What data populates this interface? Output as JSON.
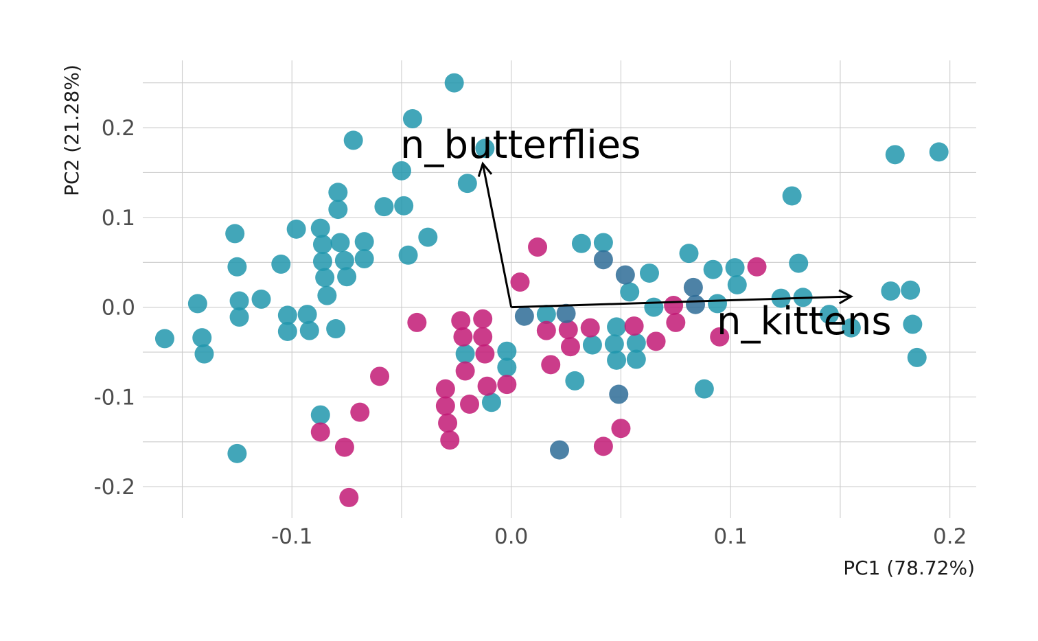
{
  "chart_data": {
    "type": "scatter",
    "title": "",
    "xlabel": "PC1 (78.72%)",
    "ylabel": "PC2 (21.28%)",
    "xlim": [
      -0.168,
      0.212
    ],
    "ylim": [
      -0.235,
      0.275
    ],
    "x_ticks": [
      -0.1,
      0.0,
      0.1,
      0.2
    ],
    "x_tick_labels": [
      "-0.1",
      "0.0",
      "0.1",
      "0.2"
    ],
    "y_ticks": [
      -0.2,
      -0.1,
      0.0,
      0.1,
      0.2
    ],
    "y_tick_labels": [
      "-0.2",
      "-0.1",
      "0.0",
      "0.1",
      "0.2"
    ],
    "grid": true,
    "legend": "none",
    "colors": {
      "teal": "#2196ad",
      "magenta": "#c21a75",
      "steel": "#2e6c96",
      "grid": "#cccccc",
      "arrow": "#000000"
    },
    "point_opacity": 0.85,
    "loadings": [
      {
        "label": "n_butterflies",
        "x": -0.013,
        "y": 0.16
      },
      {
        "label": "n_kittens",
        "x": 0.155,
        "y": 0.012
      }
    ],
    "series": [
      {
        "color_key": "teal",
        "points": [
          [
            -0.026,
            0.25
          ],
          [
            -0.045,
            0.21
          ],
          [
            -0.072,
            0.186
          ],
          [
            -0.012,
            0.177
          ],
          [
            -0.05,
            0.152
          ],
          [
            -0.02,
            0.138
          ],
          [
            -0.079,
            0.128
          ],
          [
            -0.058,
            0.112
          ],
          [
            -0.049,
            0.113
          ],
          [
            -0.079,
            0.109
          ],
          [
            -0.098,
            0.087
          ],
          [
            -0.087,
            0.088
          ],
          [
            -0.126,
            0.082
          ],
          [
            -0.038,
            0.078
          ],
          [
            -0.067,
            0.073
          ],
          [
            -0.078,
            0.072
          ],
          [
            -0.086,
            0.07
          ],
          [
            -0.047,
            0.058
          ],
          [
            -0.105,
            0.048
          ],
          [
            -0.125,
            0.045
          ],
          [
            -0.086,
            0.051
          ],
          [
            -0.076,
            0.052
          ],
          [
            -0.067,
            0.054
          ],
          [
            -0.085,
            0.033
          ],
          [
            -0.075,
            0.034
          ],
          [
            -0.084,
            0.013
          ],
          [
            -0.114,
            0.009
          ],
          [
            -0.124,
            0.007
          ],
          [
            -0.143,
            0.004
          ],
          [
            -0.102,
            -0.009
          ],
          [
            -0.093,
            -0.008
          ],
          [
            -0.124,
            -0.011
          ],
          [
            -0.08,
            -0.024
          ],
          [
            -0.102,
            -0.027
          ],
          [
            -0.092,
            -0.026
          ],
          [
            -0.158,
            -0.035
          ],
          [
            -0.141,
            -0.034
          ],
          [
            -0.14,
            -0.052
          ],
          [
            -0.087,
            -0.12
          ],
          [
            -0.125,
            -0.163
          ],
          [
            -0.021,
            -0.052
          ],
          [
            -0.002,
            -0.049
          ],
          [
            -0.002,
            -0.067
          ],
          [
            -0.009,
            -0.106
          ],
          [
            0.016,
            -0.008
          ],
          [
            0.032,
            0.071
          ],
          [
            0.042,
            0.072
          ],
          [
            0.063,
            0.038
          ],
          [
            0.054,
            0.017
          ],
          [
            0.081,
            0.06
          ],
          [
            0.092,
            0.042
          ],
          [
            0.102,
            0.044
          ],
          [
            0.103,
            0.025
          ],
          [
            0.094,
            0.004
          ],
          [
            0.065,
            0.0
          ],
          [
            0.048,
            -0.022
          ],
          [
            0.057,
            -0.04
          ],
          [
            0.047,
            -0.041
          ],
          [
            0.037,
            -0.042
          ],
          [
            0.048,
            -0.059
          ],
          [
            0.057,
            -0.058
          ],
          [
            0.029,
            -0.082
          ],
          [
            0.088,
            -0.091
          ],
          [
            0.128,
            0.124
          ],
          [
            0.131,
            0.049
          ],
          [
            0.123,
            0.01
          ],
          [
            0.133,
            0.011
          ],
          [
            0.145,
            -0.008
          ],
          [
            0.155,
            -0.023
          ],
          [
            0.173,
            0.018
          ],
          [
            0.182,
            0.019
          ],
          [
            0.183,
            -0.019
          ],
          [
            0.185,
            -0.056
          ],
          [
            0.175,
            0.17
          ],
          [
            0.195,
            0.173
          ]
        ]
      },
      {
        "color_key": "magenta",
        "points": [
          [
            0.012,
            0.067
          ],
          [
            0.004,
            0.028
          ],
          [
            -0.043,
            -0.017
          ],
          [
            -0.023,
            -0.015
          ],
          [
            -0.013,
            -0.013
          ],
          [
            -0.022,
            -0.033
          ],
          [
            -0.013,
            -0.033
          ],
          [
            -0.012,
            -0.052
          ],
          [
            -0.021,
            -0.071
          ],
          [
            -0.06,
            -0.077
          ],
          [
            -0.011,
            -0.088
          ],
          [
            -0.002,
            -0.086
          ],
          [
            -0.03,
            -0.091
          ],
          [
            -0.03,
            -0.11
          ],
          [
            -0.019,
            -0.108
          ],
          [
            -0.029,
            -0.129
          ],
          [
            -0.069,
            -0.117
          ],
          [
            -0.087,
            -0.139
          ],
          [
            -0.028,
            -0.148
          ],
          [
            -0.076,
            -0.156
          ],
          [
            -0.074,
            -0.212
          ],
          [
            0.016,
            -0.026
          ],
          [
            0.026,
            -0.025
          ],
          [
            0.027,
            -0.044
          ],
          [
            0.036,
            -0.023
          ],
          [
            0.056,
            -0.021
          ],
          [
            0.066,
            -0.038
          ],
          [
            0.018,
            -0.064
          ],
          [
            0.05,
            -0.135
          ],
          [
            0.042,
            -0.155
          ],
          [
            0.074,
            0.002
          ],
          [
            0.075,
            -0.017
          ],
          [
            0.095,
            -0.033
          ],
          [
            0.112,
            0.045
          ]
        ]
      },
      {
        "color_key": "steel",
        "points": [
          [
            0.006,
            -0.01
          ],
          [
            0.025,
            -0.007
          ],
          [
            0.042,
            0.053
          ],
          [
            0.052,
            0.036
          ],
          [
            0.083,
            0.022
          ],
          [
            0.084,
            0.003
          ],
          [
            0.049,
            -0.097
          ],
          [
            0.022,
            -0.159
          ]
        ]
      }
    ]
  }
}
